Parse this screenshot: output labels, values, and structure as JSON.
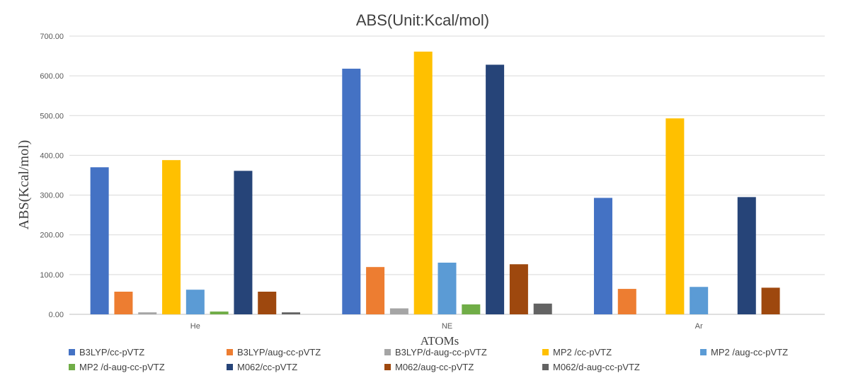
{
  "chart_data": {
    "type": "bar",
    "title": "ABS(Unit:Kcal/mol)",
    "xlabel": "ATOMs",
    "ylabel": "ABS(Kcal/mol)",
    "categories": [
      "He",
      "NE",
      "Ar"
    ],
    "ylim": [
      0,
      700
    ],
    "yticks": [
      "0.00",
      "100.00",
      "200.00",
      "300.00",
      "400.00",
      "500.00",
      "600.00",
      "700.00"
    ],
    "grid": true,
    "legend_position": "bottom",
    "series": [
      {
        "name": "B3LYP/cc-pVTZ",
        "color": "#4472C4",
        "values": [
          370,
          618,
          293
        ]
      },
      {
        "name": "B3LYP/aug-cc-pVTZ",
        "color": "#ED7D31",
        "values": [
          57,
          119,
          64
        ]
      },
      {
        "name": "B3LYP/d-aug-cc-pVTZ",
        "color": "#A5A5A5",
        "values": [
          5,
          15,
          0
        ]
      },
      {
        "name": "MP2 /cc-pVTZ",
        "color": "#FFC000",
        "values": [
          388,
          661,
          493
        ]
      },
      {
        "name": "MP2 /aug-cc-pVTZ",
        "color": "#5B9BD5",
        "values": [
          62,
          130,
          69
        ]
      },
      {
        "name": "MP2 /d-aug-cc-pVTZ",
        "color": "#70AD47",
        "values": [
          7,
          25,
          0
        ]
      },
      {
        "name": "M062/cc-pVTZ",
        "color": "#264478",
        "values": [
          361,
          628,
          295
        ]
      },
      {
        "name": "M062/aug-cc-pVTZ",
        "color": "#9E480E",
        "values": [
          57,
          126,
          67
        ]
      },
      {
        "name": "M062/d-aug-cc-pVTZ",
        "color": "#636363",
        "values": [
          5,
          27,
          0
        ]
      }
    ]
  }
}
